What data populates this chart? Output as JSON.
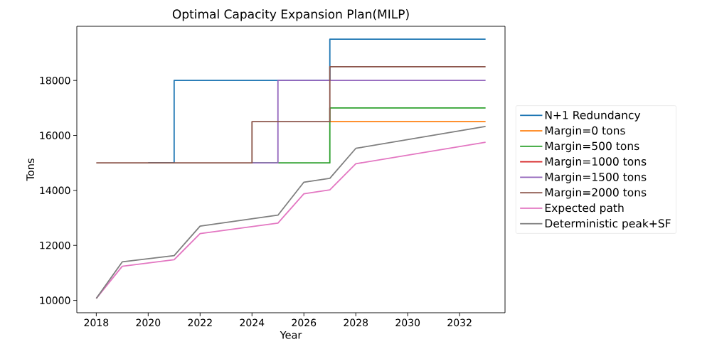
{
  "chart_data": {
    "type": "step",
    "title": "Optimal Capacity Expansion Plan(MILP)",
    "xlabel": "Year",
    "ylabel": "Tons",
    "x": [
      2018,
      2019,
      2020,
      2021,
      2022,
      2023,
      2024,
      2025,
      2026,
      2027,
      2028,
      2029,
      2030,
      2031,
      2032,
      2033
    ],
    "series": [
      {
        "name": "N+1 Redundancy",
        "color": "#1f77b4",
        "values": [
          null,
          null,
          15000,
          18000,
          18000,
          18000,
          18000,
          18000,
          18000,
          19500,
          19500,
          19500,
          19500,
          19500,
          19500,
          19500
        ]
      },
      {
        "name": "Margin=0 tons",
        "color": "#ff7f0e",
        "values": [
          null,
          null,
          null,
          null,
          null,
          null,
          null,
          null,
          null,
          16500,
          16500,
          16500,
          16500,
          16500,
          16500,
          16500
        ]
      },
      {
        "name": "Margin=500 tons",
        "color": "#2ca02c",
        "values": [
          null,
          null,
          null,
          null,
          null,
          null,
          15000,
          15000,
          15000,
          17000,
          17000,
          17000,
          17000,
          17000,
          17000,
          17000
        ]
      },
      {
        "name": "Margin=1000 tons",
        "color": "#d62728",
        "values": [
          null,
          null,
          null,
          null,
          null,
          null,
          null,
          null,
          null,
          null,
          null,
          null,
          null,
          null,
          null,
          null
        ]
      },
      {
        "name": "Margin=1500 tons",
        "color": "#9467bd",
        "values": [
          null,
          null,
          null,
          null,
          null,
          null,
          15000,
          18000,
          18000,
          18000,
          18000,
          18000,
          18000,
          18000,
          18000,
          18000
        ]
      },
      {
        "name": "Margin=2000 tons",
        "color": "#8c564b",
        "values": [
          15000,
          15000,
          15000,
          15000,
          15000,
          15000,
          16500,
          16500,
          16500,
          18500,
          18500,
          18500,
          18500,
          18500,
          18500,
          18500
        ]
      },
      {
        "name": "Expected path",
        "color": "#e377c2",
        "type": "line",
        "x": [
          2018,
          2019,
          2021,
          2022,
          2025,
          2026,
          2027,
          2028,
          2033
        ],
        "values": [
          10070,
          11240,
          11480,
          12430,
          12810,
          13880,
          14020,
          14970,
          15750
        ]
      },
      {
        "name": "Deterministic peak+SF",
        "color": "#7f7f7f",
        "type": "line",
        "x": [
          2018,
          2019,
          2021,
          2022,
          2025,
          2026,
          2027,
          2028,
          2033
        ],
        "values": [
          10070,
          11400,
          11630,
          12700,
          13100,
          14300,
          14440,
          15530,
          16330
        ]
      }
    ],
    "xlim": [
      2017.25,
      2033.75
    ],
    "ylim": [
      9550,
      19970
    ],
    "xticks": [
      2018,
      2020,
      2022,
      2024,
      2026,
      2028,
      2030,
      2032
    ],
    "yticks": [
      10000,
      12000,
      14000,
      16000,
      18000
    ],
    "grid": false,
    "legend": "right",
    "marker": "none",
    "line_style": "solid"
  }
}
